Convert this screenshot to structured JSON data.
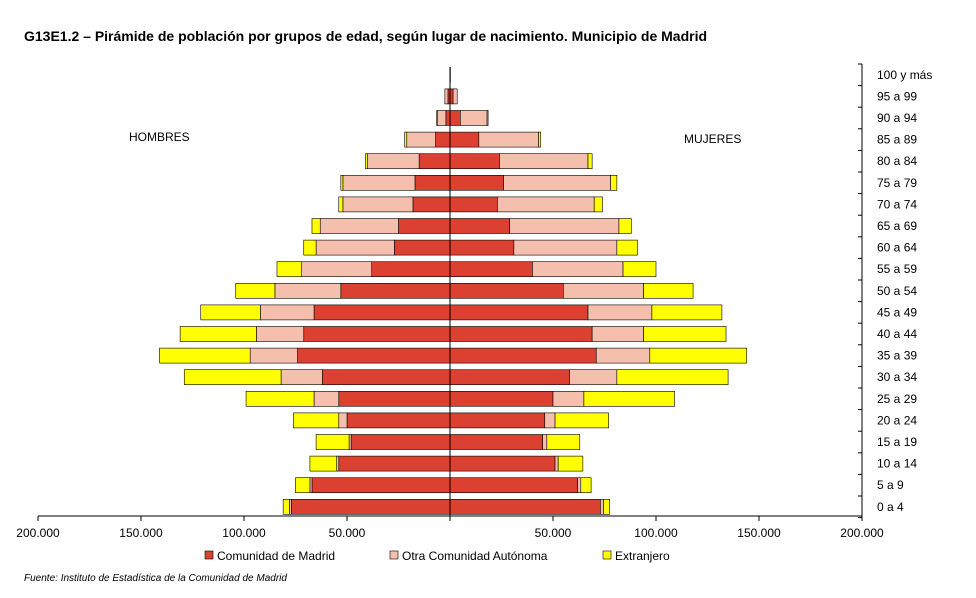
{
  "title": "G13E1.2  – Pirámide de población por grupos de edad, según lugar de nacimiento. Municipio de Madrid",
  "source": "Fuente: Instituto de Estadística de la Comunidad de Madrid",
  "side_labels": {
    "left": "HOMBRES",
    "right": "MUJERES"
  },
  "colors": {
    "madrid": "#dc4031",
    "otra": "#f5bfae",
    "extranjero": "#ffff00"
  },
  "chart_data": {
    "type": "bar",
    "orientation": "horizontal-pyramid",
    "categories": [
      "100 y más",
      "95 a 99",
      "90 a 94",
      "85 a 89",
      "80 a 84",
      "75 a 79",
      "70 a 74",
      "65 a 69",
      "60 a 64",
      "55 a 59",
      "50 a 54",
      "45 a 49",
      "40 a 44",
      "35 a 39",
      "30 a 34",
      "25 a 29",
      "20 a 24",
      "15 a 19",
      "10 a 14",
      "5 a 9",
      "0 a 4"
    ],
    "xlim": [
      -200000,
      200000
    ],
    "x_ticks": [
      -200000,
      -150000,
      -100000,
      -50000,
      0,
      50000,
      100000,
      150000,
      200000
    ],
    "x_tick_labels": [
      "200.000",
      "150.000",
      "100.000",
      "50.000",
      "",
      "50.000",
      "100.000",
      "150.000",
      "200.000"
    ],
    "stacked": true,
    "series": [
      {
        "name": "Comunidad de Madrid",
        "hombres": [
          100,
          1000,
          2000,
          7000,
          15000,
          17000,
          18000,
          25000,
          27000,
          38000,
          53000,
          66000,
          71000,
          74000,
          62000,
          54000,
          50000,
          48000,
          54000,
          67000,
          77000
        ],
        "mujeres": [
          200,
          1500,
          5000,
          14000,
          24000,
          26000,
          23000,
          29000,
          31000,
          40000,
          55000,
          67000,
          69000,
          71000,
          58000,
          50000,
          46000,
          45000,
          51000,
          62000,
          73000
        ]
      },
      {
        "name": "Otra Comunidad Autónoma",
        "hombres": [
          0,
          1500,
          4000,
          14000,
          25000,
          35000,
          34000,
          38000,
          38000,
          34000,
          32000,
          26000,
          23000,
          23000,
          20000,
          12000,
          4000,
          1000,
          1000,
          1000,
          1000
        ],
        "mujeres": [
          0,
          2000,
          13000,
          29000,
          43000,
          52000,
          47000,
          53000,
          50000,
          44000,
          39000,
          31000,
          25000,
          26000,
          23000,
          15000,
          5000,
          2000,
          1500,
          1500,
          1500
        ]
      },
      {
        "name": "Extranjero",
        "hombres": [
          0,
          0,
          500,
          1000,
          1000,
          1000,
          2000,
          4000,
          6000,
          12000,
          19000,
          29000,
          37000,
          44000,
          47000,
          33000,
          22000,
          16000,
          13000,
          7000,
          3000
        ],
        "mujeres": [
          0,
          0,
          500,
          1000,
          2000,
          3000,
          4000,
          6000,
          10000,
          16000,
          24000,
          34000,
          40000,
          47000,
          54000,
          44000,
          26000,
          16000,
          12000,
          5000,
          3000
        ]
      }
    ],
    "legend_position": "bottom"
  }
}
